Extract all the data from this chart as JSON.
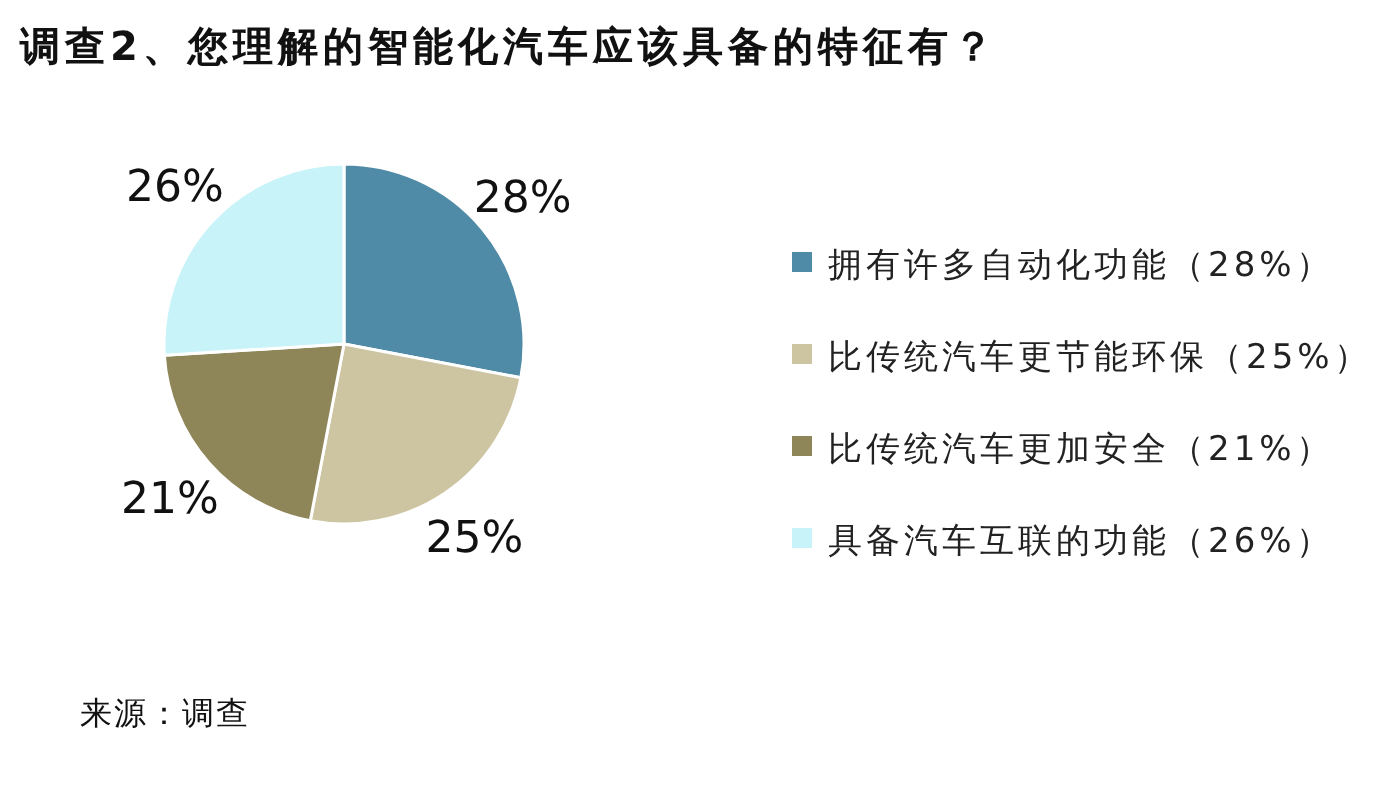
{
  "chart_data": {
    "type": "pie",
    "title": "调查2、您理解的智能化汽车应该具备的特征有？",
    "categories": [
      "拥有许多自动化功能（28%）",
      "比传统汽车更节能环保（25%）",
      "比传统汽车更加安全（21%）",
      "具备汽车互联的功能（26%）"
    ],
    "values": [
      28,
      25,
      21,
      26
    ],
    "colors": [
      "#4f8ba6",
      "#cdc5a2",
      "#8e8659",
      "#c8f4f9"
    ],
    "value_labels": [
      "28%",
      "25%",
      "21%",
      "26%"
    ],
    "legend": "right",
    "annotations": [
      "来源：调查"
    ]
  }
}
